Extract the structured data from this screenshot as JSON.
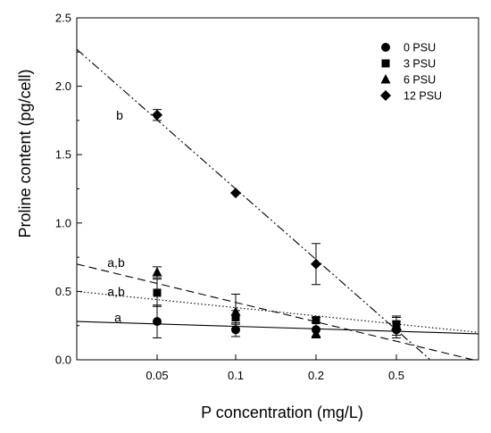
{
  "chart_data": {
    "type": "scatter",
    "xlabel": "P concentration (mg/L)",
    "ylabel": "Proline content (pg/cell)",
    "x_scale": "categorical",
    "x_categories": [
      "0.05",
      "0.1",
      "0.2",
      "0.5"
    ],
    "ylim": [
      0.0,
      2.5
    ],
    "y_ticks": [
      "0.0",
      "0.5",
      "1.0",
      "1.5",
      "2.0",
      "2.5"
    ],
    "grid": false,
    "legend": {
      "placement": "top-right",
      "entries": [
        "0 PSU",
        "3 PSU",
        "6 PSU",
        "12 PSU"
      ]
    },
    "series": [
      {
        "name": "0 PSU",
        "marker": "circle",
        "line_style": "solid",
        "points": [
          {
            "x": "0.05",
            "y": 0.28,
            "err": 0.12
          },
          {
            "x": "0.1",
            "y": 0.22,
            "err": 0.05
          },
          {
            "x": "0.2",
            "y": 0.22,
            "err": 0.05
          },
          {
            "x": "0.5",
            "y": 0.22,
            "err": 0.06
          }
        ],
        "fit_line": {
          "y_left": 0.28,
          "y_right": 0.19
        }
      },
      {
        "name": "3 PSU",
        "marker": "square",
        "line_style": "dotted",
        "points": [
          {
            "x": "0.05",
            "y": 0.49,
            "err": 0.1
          },
          {
            "x": "0.1",
            "y": 0.31,
            "err": 0.05
          },
          {
            "x": "0.2",
            "y": 0.29,
            "err": 0.02
          },
          {
            "x": "0.5",
            "y": 0.26,
            "err": 0.05
          }
        ],
        "fit_line": {
          "y_left": 0.5,
          "y_right": 0.2
        }
      },
      {
        "name": "6 PSU",
        "marker": "triangle",
        "line_style": "dashed",
        "points": [
          {
            "x": "0.05",
            "y": 0.64,
            "err": 0.04
          },
          {
            "x": "0.1",
            "y": 0.35,
            "err": 0.13
          },
          {
            "x": "0.2",
            "y": 0.19,
            "err": 0.03
          },
          {
            "x": "0.5",
            "y": 0.25,
            "err": 0.07
          }
        ],
        "fit_line": {
          "y_left": 0.7,
          "y_right": 0.0
        }
      },
      {
        "name": "12 PSU",
        "marker": "diamond",
        "line_style": "dash-dot-dot",
        "points": [
          {
            "x": "0.05",
            "y": 1.79,
            "err": 0.04
          },
          {
            "x": "0.1",
            "y": 1.22,
            "err": 0.0
          },
          {
            "x": "0.2",
            "y": 0.7,
            "err": 0.15
          },
          {
            "x": "0.5",
            "y": 0.22,
            "err": 0.0
          }
        ],
        "fit_line": {
          "y_left": 2.27,
          "y_right": 0.0
        }
      }
    ],
    "annotations": [
      {
        "text": "b",
        "y": 1.79
      },
      {
        "text": "a,b",
        "y": 0.71
      },
      {
        "text": "a,b",
        "y": 0.5
      },
      {
        "text": "a",
        "y": 0.31
      }
    ]
  }
}
